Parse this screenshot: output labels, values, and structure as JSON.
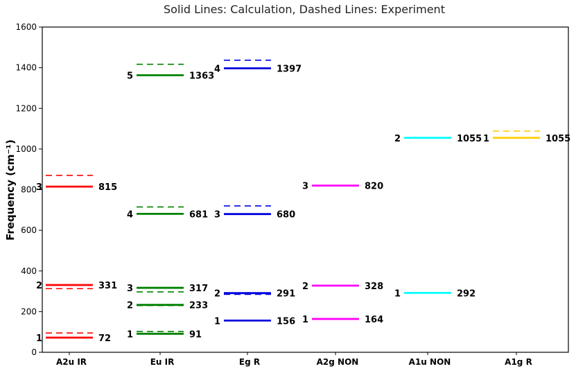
{
  "chart_data": {
    "type": "level-diagram",
    "title": "Solid Lines: Calculation, Dashed Lines: Experiment",
    "xlabel": "",
    "ylabel": "Frequency (cm⁻¹)",
    "ylim": [
      0,
      1600
    ],
    "yticks": [
      0,
      200,
      400,
      600,
      800,
      1000,
      1200,
      1400,
      1600
    ],
    "grid": false,
    "categories": [
      "A2u IR",
      "Eu IR",
      "Eg R",
      "A2g NON",
      "A1u NON",
      "A1g R"
    ],
    "series": [
      {
        "category": "A2u IR",
        "color": "#ff0000",
        "calculated": [
          {
            "mode": "1",
            "value": 72,
            "label": "72"
          },
          {
            "mode": "2",
            "value": 331,
            "label": "331"
          },
          {
            "mode": "3",
            "value": 815,
            "label": "815"
          }
        ],
        "experimental": [
          95,
          313,
          870
        ]
      },
      {
        "category": "Eu IR",
        "color": "#008000",
        "calculated": [
          {
            "mode": "1",
            "value": 91,
            "label": "91"
          },
          {
            "mode": "2",
            "value": 233,
            "label": "233"
          },
          {
            "mode": "3",
            "value": 317,
            "label": "317"
          },
          {
            "mode": "4",
            "value": 681,
            "label": "681"
          },
          {
            "mode": "5",
            "value": 1363,
            "label": "1363"
          }
        ],
        "experimental": [
          102,
          230,
          297,
          715,
          1417
        ]
      },
      {
        "category": "Eg R",
        "color": "#0000dd",
        "calculated": [
          {
            "mode": "1",
            "value": 156,
            "label": "156"
          },
          {
            "mode": "2",
            "value": 291,
            "label": "291"
          },
          {
            "mode": "3",
            "value": 680,
            "label": "680"
          },
          {
            "mode": "4",
            "value": 1397,
            "label": "1397"
          }
        ],
        "experimental": [
          285,
          720,
          1437
        ]
      },
      {
        "category": "A2g NON",
        "color": "#ff00ff",
        "calculated": [
          {
            "mode": "1",
            "value": 164,
            "label": "164"
          },
          {
            "mode": "2",
            "value": 328,
            "label": "328"
          },
          {
            "mode": "3",
            "value": 820,
            "label": "820"
          }
        ],
        "experimental": []
      },
      {
        "category": "A1u NON",
        "color": "#00ffff",
        "calculated": [
          {
            "mode": "1",
            "value": 292,
            "label": "292"
          },
          {
            "mode": "2",
            "value": 1055,
            "label": "1055"
          }
        ],
        "experimental": []
      },
      {
        "category": "A1g R",
        "color": "#ffcc00",
        "calculated": [
          {
            "mode": "1",
            "value": 1055,
            "label": "1055"
          }
        ],
        "experimental": [
          1088
        ]
      }
    ]
  }
}
